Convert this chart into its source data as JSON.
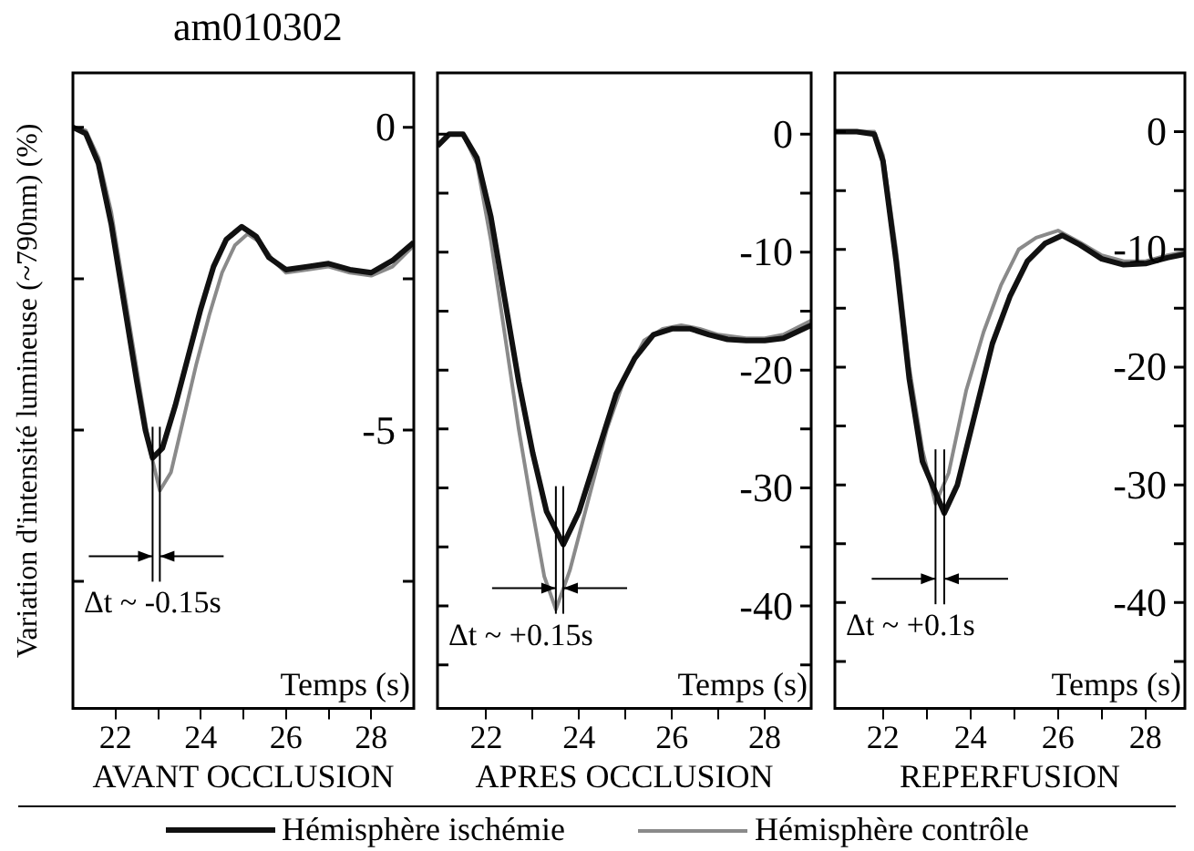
{
  "chart_data": [
    {
      "type": "line",
      "title": "am010302",
      "subtitle": "AVANT OCCLUSION",
      "xlabel": "Temps (s)",
      "ylabel": "Variation d'intensité lumineuse (~790nm) (%)",
      "xlim": [
        21,
        29
      ],
      "xticks": [
        22,
        {
          "value": 23,
          "label": null
        },
        24,
        {
          "value": 25,
          "label": null
        },
        26,
        {
          "value": 27,
          "label": null
        },
        28
      ],
      "ylim": [
        -9.6,
        0.9
      ],
      "yticks": [
        0,
        {
          "value": -2.5,
          "label": null
        },
        -5,
        {
          "value": -7.5,
          "label": null
        }
      ],
      "series": [
        {
          "color": "#111111",
          "x": [
            21,
            21.3,
            21.6,
            21.9,
            22.2,
            22.5,
            22.7,
            22.87,
            23.1,
            23.4,
            23.7,
            24.0,
            24.3,
            24.6,
            24.96,
            25.3,
            25.6,
            26.0,
            26.5,
            27.0,
            27.5,
            28.0,
            28.5,
            29.0
          ],
          "values": [
            0,
            -0.1,
            -0.6,
            -1.6,
            -2.9,
            -4.2,
            -5.0,
            -5.46,
            -5.3,
            -4.6,
            -3.8,
            -3.0,
            -2.3,
            -1.85,
            -1.64,
            -1.8,
            -2.15,
            -2.35,
            -2.3,
            -2.25,
            -2.35,
            -2.4,
            -2.2,
            -1.9
          ]
        },
        {
          "color": "#8a8a8a",
          "x": [
            21,
            21.3,
            21.6,
            21.9,
            22.2,
            22.5,
            22.8,
            23.04,
            23.3,
            23.6,
            23.9,
            24.2,
            24.5,
            24.8,
            25.1,
            25.4,
            25.7,
            26.0,
            26.5,
            27.0,
            27.5,
            28.0,
            28.5,
            29.0
          ],
          "values": [
            0,
            -0.05,
            -0.5,
            -1.4,
            -2.7,
            -4.0,
            -5.3,
            -6.0,
            -5.7,
            -4.8,
            -3.9,
            -3.1,
            -2.4,
            -1.95,
            -1.76,
            -1.9,
            -2.2,
            -2.4,
            -2.35,
            -2.3,
            -2.4,
            -2.45,
            -2.3,
            -1.95
          ]
        }
      ],
      "ref_lines": [
        {
          "axis": "x",
          "value": 22.87
        },
        {
          "axis": "x",
          "value": 23.04
        }
      ],
      "annotations": [
        "Δt ~ -0.15s"
      ]
    },
    {
      "type": "line",
      "subtitle": "APRES OCCLUSION",
      "xlabel": "Temps (s)",
      "legend": "bottom",
      "xlim": [
        20.95,
        29
      ],
      "xticks": [
        22,
        {
          "value": 23,
          "label": null
        },
        24,
        {
          "value": 25,
          "label": null
        },
        26,
        {
          "value": 27,
          "label": null
        },
        28
      ],
      "ylim": [
        -48.7,
        5.2
      ],
      "yticks": [
        0,
        {
          "value": -5,
          "label": null
        },
        -10,
        {
          "value": -15,
          "label": null
        },
        -20,
        {
          "value": -25,
          "label": null
        },
        -30,
        {
          "value": -35,
          "label": null
        },
        -40,
        {
          "value": -45,
          "label": null
        }
      ],
      "series": [
        {
          "name": "Hémisphère ischémie",
          "color": "#111111",
          "x": [
            20.95,
            21.2,
            21.5,
            21.8,
            22.1,
            22.4,
            22.7,
            23.0,
            23.3,
            23.66,
            24.0,
            24.4,
            24.8,
            25.2,
            25.6,
            26.0,
            26.4,
            26.8,
            27.2,
            27.6,
            28.0,
            28.4,
            29.0
          ],
          "values": [
            -1,
            0,
            0,
            -2,
            -7,
            -14,
            -21,
            -27,
            -32,
            -34.8,
            -32,
            -27,
            -22,
            -19,
            -17,
            -16.5,
            -16.5,
            -17,
            -17.4,
            -17.5,
            -17.5,
            -17.3,
            -16.2
          ]
        },
        {
          "name": "Hémisphère contrôle",
          "color": "#8a8a8a",
          "x": [
            20.95,
            21.2,
            21.5,
            21.8,
            22.1,
            22.4,
            22.7,
            23.0,
            23.25,
            23.5,
            23.8,
            24.2,
            24.6,
            25.0,
            25.4,
            25.8,
            26.2,
            26.6,
            27.0,
            27.6,
            28.0,
            28.4,
            29.0
          ],
          "values": [
            -1,
            0,
            0,
            -2.5,
            -9,
            -17,
            -25,
            -32,
            -37.5,
            -40.3,
            -37,
            -31,
            -25,
            -20.5,
            -17.5,
            -16.5,
            -16.2,
            -16.5,
            -17,
            -17.3,
            -17.3,
            -17,
            -15.8
          ]
        }
      ],
      "ref_lines": [
        {
          "axis": "x",
          "value": 23.5
        },
        {
          "axis": "x",
          "value": 23.66
        }
      ],
      "annotations": [
        "Δt ~ +0.15s"
      ]
    },
    {
      "type": "line",
      "subtitle": "REPERFUSION",
      "xlabel": "Temps (s)",
      "xlim": [
        20.9,
        28.9
      ],
      "xticks": [
        22,
        {
          "value": 23,
          "label": null
        },
        24,
        {
          "value": 25,
          "label": null
        },
        26,
        {
          "value": 27,
          "label": null
        },
        28
      ],
      "ylim": [
        -49,
        5
      ],
      "yticks": [
        0,
        {
          "value": -5,
          "label": null
        },
        -10,
        {
          "value": -15,
          "label": null
        },
        -20,
        {
          "value": -25,
          "label": null
        },
        -30,
        {
          "value": -35,
          "label": null
        },
        -40,
        {
          "value": -45,
          "label": null
        }
      ],
      "series": [
        {
          "color": "#111111",
          "x": [
            20.9,
            21.4,
            21.8,
            22.0,
            22.3,
            22.6,
            22.9,
            23.4,
            23.7,
            24.1,
            24.5,
            24.9,
            25.3,
            25.7,
            26.1,
            26.5,
            27.0,
            27.5,
            28.0,
            28.5,
            28.9
          ],
          "values": [
            0,
            0,
            -0.2,
            -2.5,
            -11,
            -21,
            -28,
            -32.4,
            -30,
            -24,
            -18,
            -14,
            -11,
            -9.5,
            -8.8,
            -9.6,
            -10.8,
            -11.3,
            -11.2,
            -10.7,
            -10.4
          ]
        },
        {
          "color": "#8a8a8a",
          "x": [
            20.9,
            21.4,
            21.8,
            22.0,
            22.3,
            22.6,
            22.9,
            23.2,
            23.5,
            23.9,
            24.3,
            24.7,
            25.1,
            25.5,
            26.0,
            26.5,
            27.0,
            27.5,
            28.0,
            28.5,
            28.9
          ],
          "values": [
            0,
            0,
            0,
            -2,
            -10,
            -20,
            -27,
            -31.6,
            -29,
            -22,
            -17,
            -13,
            -10,
            -9,
            -8.4,
            -9.4,
            -10.5,
            -11,
            -11,
            -10.5,
            -10.2
          ]
        }
      ],
      "ref_lines": [
        {
          "axis": "x",
          "value": 23.2
        },
        {
          "axis": "x",
          "value": 23.4
        }
      ],
      "annotations": [
        "Δt ~ +0.1s"
      ]
    }
  ]
}
